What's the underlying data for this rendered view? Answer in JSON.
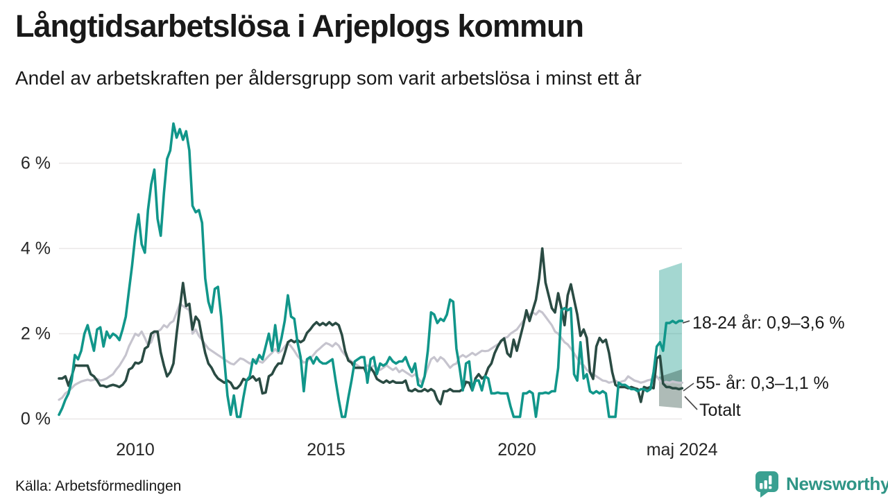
{
  "header": {
    "title": "Långtidsarbetslösa i Arjeplogs kommun",
    "subtitle": "Andel av arbetskraften per åldersgrupp som varit arbetslösa i minst ett år"
  },
  "chart_data": {
    "type": "line",
    "title": "Långtidsarbetslösa i Arjeplogs kommun",
    "subtitle": "Andel av arbetskraften per åldersgrupp som varit arbetslösa i minst ett år",
    "x_start_year": 2008,
    "x_step_months": 1,
    "ylim": [
      0,
      7.2
    ],
    "grid": true,
    "unit": "%",
    "yticks": [
      {
        "value": 0,
        "label": "0 %"
      },
      {
        "value": 2,
        "label": "2 %"
      },
      {
        "value": 4,
        "label": "4 %"
      },
      {
        "value": 6,
        "label": "6 %"
      }
    ],
    "xticks": [
      {
        "year": 2010,
        "label": "2010"
      },
      {
        "year": 2015,
        "label": "2015"
      },
      {
        "year": 2020,
        "label": "2020"
      },
      {
        "year": 2024.33,
        "label": "maj 2024"
      }
    ],
    "colors": {
      "grid": "#e9e7e7",
      "leader": "#4a4a4a",
      "teal": "#11968a",
      "dark_green": "#2a4b43",
      "gray": "#c6c4ce"
    },
    "series": [
      {
        "id": "totalt",
        "name": "Totalt",
        "color": "#c6c4ce",
        "width": 3.2,
        "values": [
          0.45,
          0.5,
          0.6,
          0.65,
          0.72,
          0.8,
          0.84,
          0.88,
          0.9,
          0.92,
          0.9,
          0.92,
          0.94,
          0.9,
          0.92,
          0.95,
          1.0,
          1.05,
          1.16,
          1.25,
          1.37,
          1.5,
          1.7,
          1.85,
          2.0,
          1.95,
          2.05,
          1.9,
          1.73,
          1.8,
          2.0,
          2.05,
          2.1,
          2.2,
          2.15,
          2.25,
          2.3,
          2.5,
          2.7,
          2.65,
          2.6,
          2.55,
          2.0,
          2.1,
          1.95,
          1.85,
          1.75,
          1.65,
          1.6,
          1.55,
          1.5,
          1.45,
          1.4,
          1.35,
          1.3,
          1.28,
          1.35,
          1.42,
          1.4,
          1.35,
          1.3,
          1.35,
          1.4,
          1.35,
          1.32,
          1.4,
          1.48,
          1.55,
          1.64,
          1.55,
          1.6,
          1.7,
          1.78,
          1.7,
          1.6,
          1.48,
          1.4,
          1.32,
          1.35,
          1.42,
          1.5,
          1.59,
          1.65,
          1.72,
          1.78,
          1.75,
          1.7,
          1.78,
          1.72,
          1.59,
          1.5,
          1.42,
          1.35,
          1.3,
          1.25,
          1.2,
          1.2,
          1.26,
          1.2,
          1.25,
          1.2,
          1.15,
          1.2,
          1.26,
          1.2,
          1.15,
          1.2,
          1.1,
          1.15,
          1.1,
          1.05,
          1.0,
          1.05,
          0.95,
          0.85,
          1.0,
          1.2,
          1.4,
          1.45,
          1.35,
          1.45,
          1.4,
          1.3,
          1.2,
          1.27,
          1.3,
          1.45,
          1.5,
          1.45,
          1.5,
          1.55,
          1.5,
          1.55,
          1.6,
          1.59,
          1.6,
          1.65,
          1.7,
          1.75,
          1.8,
          1.9,
          1.92,
          2.0,
          2.05,
          2.1,
          2.2,
          2.3,
          2.4,
          2.45,
          2.5,
          2.45,
          2.54,
          2.5,
          2.4,
          2.3,
          2.2,
          2.05,
          2.0,
          1.9,
          1.8,
          1.75,
          1.65,
          1.54,
          1.42,
          1.3,
          1.26,
          1.15,
          1.1,
          1.05,
          1.0,
          0.95,
          0.9,
          0.89,
          0.85,
          0.87,
          0.9,
          0.85,
          0.88,
          0.9,
          1.0,
          0.95,
          0.9,
          0.88,
          0.85,
          0.87,
          0.9,
          0.92,
          0.95,
          1.0,
          0.9,
          0.85,
          0.87,
          0.85,
          0.88,
          0.86,
          0.85,
          0.85
        ]
      },
      {
        "id": "55-ar",
        "name": "55- år",
        "color": "#2a4b43",
        "width": 3.6,
        "values": [
          0.95,
          0.95,
          1.0,
          0.78,
          1.0,
          1.26,
          1.25,
          1.25,
          1.25,
          1.25,
          1.05,
          1.0,
          0.9,
          0.78,
          0.78,
          0.75,
          0.78,
          0.8,
          0.78,
          0.75,
          0.8,
          0.9,
          1.16,
          1.2,
          1.32,
          1.3,
          1.35,
          1.65,
          1.7,
          2.0,
          2.05,
          2.05,
          1.56,
          1.25,
          1.0,
          1.1,
          1.3,
          2.0,
          2.6,
          3.19,
          2.65,
          2.7,
          2.1,
          2.4,
          2.3,
          1.9,
          1.55,
          1.3,
          1.2,
          1.05,
          0.95,
          0.9,
          0.85,
          0.9,
          0.85,
          0.72,
          0.72,
          0.8,
          0.94,
          0.9,
          0.95,
          1.0,
          0.9,
          0.95,
          0.6,
          0.62,
          1.0,
          1.05,
          1.2,
          1.3,
          1.3,
          1.54,
          1.8,
          1.85,
          1.8,
          1.85,
          1.8,
          1.85,
          2.02,
          2.1,
          2.2,
          2.27,
          2.2,
          2.25,
          2.2,
          2.27,
          2.2,
          2.25,
          2.2,
          1.97,
          1.59,
          1.37,
          1.32,
          1.2,
          1.2,
          1.2,
          1.2,
          1.0,
          1.2,
          1.1,
          0.94,
          0.89,
          0.85,
          0.9,
          0.85,
          0.89,
          0.85,
          0.85,
          0.85,
          0.9,
          0.67,
          0.65,
          0.7,
          0.65,
          0.65,
          0.7,
          0.65,
          0.7,
          0.65,
          0.45,
          0.35,
          0.65,
          0.65,
          0.7,
          0.65,
          0.65,
          0.65,
          0.7,
          0.87,
          0.85,
          0.67,
          0.95,
          1.05,
          0.95,
          1.0,
          1.2,
          1.3,
          1.54,
          1.7,
          1.83,
          1.89,
          1.54,
          1.46,
          1.86,
          1.6,
          1.9,
          2.2,
          2.55,
          2.3,
          2.55,
          2.8,
          3.3,
          4.0,
          3.2,
          2.9,
          2.6,
          2.5,
          2.95,
          2.6,
          2.2,
          2.9,
          3.16,
          2.8,
          2.45,
          1.95,
          2.1,
          1.9,
          1.1,
          0.94,
          1.7,
          1.9,
          1.8,
          1.86,
          1.55,
          1.1,
          0.8,
          0.75,
          0.75,
          0.75,
          0.72,
          0.75,
          0.72,
          0.7,
          0.4,
          0.75,
          0.72,
          0.75,
          0.72,
          1.42,
          1.48,
          0.83,
          0.75,
          0.75,
          0.72,
          0.72,
          0.7,
          0.72
        ]
      },
      {
        "id": "18-24-ar",
        "name": "18-24 år",
        "color": "#11968a",
        "width": 3.6,
        "values": [
          0.1,
          0.25,
          0.45,
          0.6,
          0.9,
          1.5,
          1.4,
          1.6,
          2.0,
          2.2,
          1.9,
          1.6,
          2.1,
          2.15,
          1.7,
          2.05,
          1.9,
          2.0,
          1.95,
          1.85,
          2.1,
          2.4,
          3.0,
          3.6,
          4.3,
          4.8,
          4.1,
          3.9,
          4.9,
          5.5,
          5.85,
          4.7,
          4.3,
          5.3,
          6.1,
          6.3,
          6.93,
          6.6,
          6.8,
          6.55,
          6.75,
          6.3,
          5.0,
          4.85,
          4.9,
          4.6,
          3.3,
          2.75,
          2.5,
          3.05,
          3.1,
          2.4,
          1.4,
          0.55,
          0.1,
          0.55,
          0.05,
          0.05,
          0.5,
          0.9,
          1.0,
          1.4,
          1.3,
          1.5,
          1.4,
          1.7,
          2.0,
          1.6,
          2.2,
          1.6,
          1.9,
          2.3,
          2.9,
          2.4,
          2.35,
          1.8,
          1.45,
          0.65,
          1.4,
          1.45,
          1.3,
          1.45,
          1.35,
          1.3,
          1.3,
          1.35,
          1.4,
          0.9,
          0.45,
          0.05,
          0.05,
          0.5,
          0.9,
          1.35,
          1.4,
          1.45,
          1.45,
          0.85,
          1.4,
          1.45,
          1.05,
          1.3,
          1.25,
          1.3,
          1.45,
          1.35,
          1.3,
          1.35,
          1.35,
          1.45,
          1.25,
          1.1,
          1.3,
          0.8,
          0.75,
          1.0,
          1.6,
          2.5,
          2.45,
          2.25,
          2.35,
          2.3,
          2.45,
          2.8,
          2.75,
          1.65,
          1.2,
          0.67,
          1.3,
          1.35,
          0.67,
          0.9,
          0.9,
          0.67,
          1.0,
          0.95,
          0.6,
          0.6,
          0.62,
          0.6,
          0.6,
          0.6,
          0.3,
          0.05,
          0.05,
          0.05,
          0.6,
          0.6,
          0.65,
          0.6,
          0.05,
          0.6,
          0.6,
          0.62,
          0.6,
          0.65,
          0.65,
          1.2,
          2.55,
          2.6,
          2.55,
          2.6,
          1.05,
          0.9,
          1.8,
          0.95,
          1.05,
          0.65,
          0.6,
          0.65,
          0.6,
          0.65,
          0.6,
          0.05,
          0.05,
          0.05,
          0.85,
          0.8,
          0.8,
          0.75,
          0.7,
          0.7,
          0.65,
          0.7,
          0.7,
          0.65,
          0.7,
          1.1,
          1.7,
          1.8,
          1.6,
          2.25,
          2.25,
          2.3,
          2.25,
          2.3,
          2.3
        ]
      }
    ],
    "bands": [
      {
        "id": "18-24-ar",
        "series": "18-24 år",
        "min": 0.9,
        "max": 3.6,
        "fill": "rgba(17,150,134,0.38)"
      },
      {
        "id": "55-ar",
        "series": "55- år",
        "min": 0.3,
        "max": 1.1,
        "fill": "rgba(42,75,67,0.38)"
      }
    ],
    "annotations": [
      {
        "id": "18-24-ar",
        "text": "18-24 år: 0,9–3,6 %"
      },
      {
        "id": "55-ar",
        "text": "55- år: 0,3–1,1 %"
      },
      {
        "id": "totalt",
        "text": "Totalt"
      }
    ]
  },
  "footer": {
    "source": "Källa: Arbetsförmedlingen",
    "brand": "Newsworthy"
  }
}
